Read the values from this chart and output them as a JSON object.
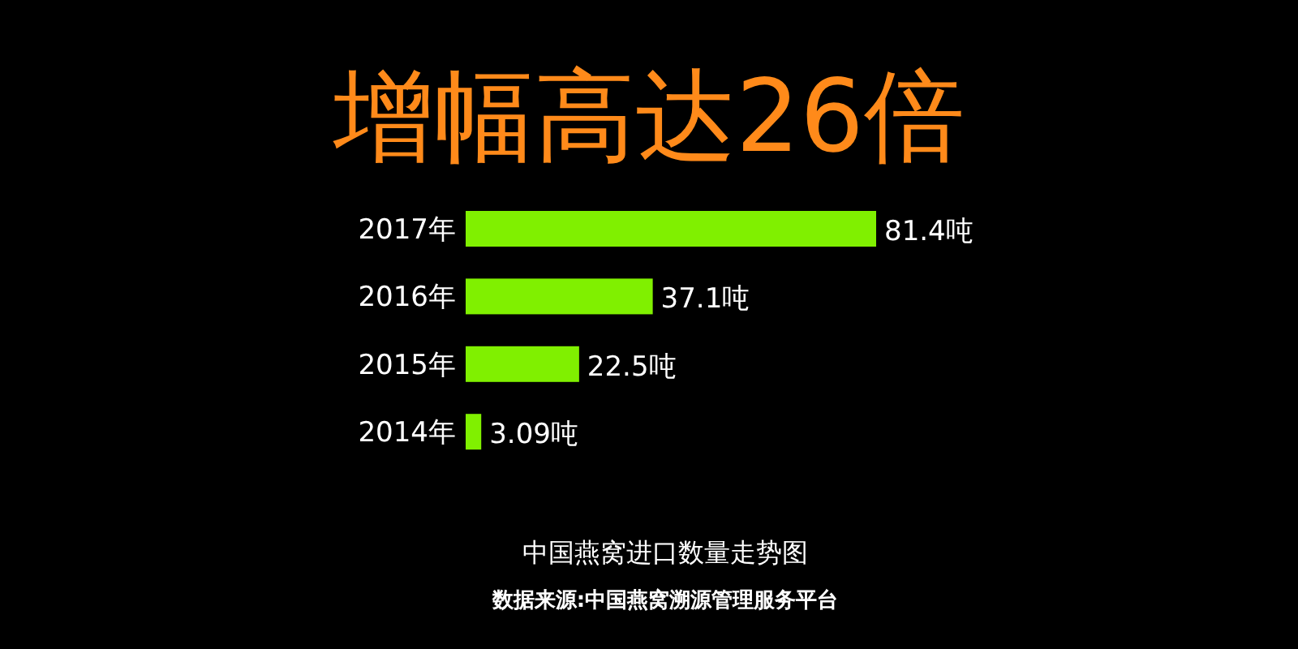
{
  "chart_data": {
    "type": "bar",
    "orientation": "horizontal",
    "title": "增幅高达26倍",
    "subtitle": "中国燕窝进口数量走势图",
    "annotations": [
      "数据来源:中国燕窝溯源管理服务平台"
    ],
    "categories": [
      "2017年",
      "2016年",
      "2015年",
      "2014年"
    ],
    "values": [
      81.4,
      37.1,
      22.5,
      3.09
    ],
    "value_labels": [
      "81.4吨",
      "37.1吨",
      "22.5吨",
      "3.09吨"
    ],
    "color": "#80f000"
  }
}
